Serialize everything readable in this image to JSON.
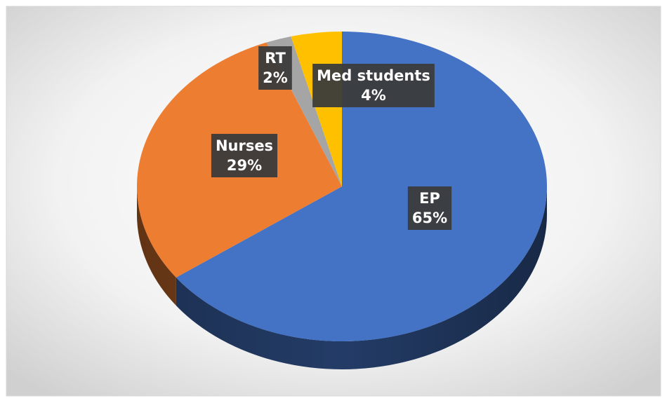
{
  "chart_data": {
    "type": "pie3d",
    "categories": [
      "EP",
      "Nurses",
      "RT",
      "Med students"
    ],
    "values": [
      65,
      29,
      2,
      4
    ],
    "value_labels": [
      "65%",
      "29%",
      "2%",
      "4%"
    ],
    "colors": [
      "#4472c4",
      "#ed7d31",
      "#a5a5a5",
      "#ffc000"
    ]
  }
}
